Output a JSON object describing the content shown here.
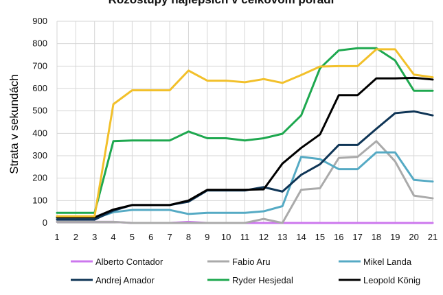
{
  "chart_data": {
    "type": "line",
    "title": "Rozostupy najlepších v celkovom poradí",
    "xlabel": "",
    "ylabel": "Strata v sekundách",
    "x": [
      1,
      2,
      3,
      4,
      5,
      6,
      7,
      8,
      9,
      10,
      11,
      12,
      13,
      14,
      15,
      16,
      17,
      18,
      19,
      20,
      21
    ],
    "ylim": [
      0,
      900
    ],
    "yticks": [
      0,
      100,
      200,
      300,
      400,
      500,
      600,
      700,
      800,
      900
    ],
    "grid": true,
    "legend_position": "bottom",
    "series": [
      {
        "name": "Alberto Contador",
        "color": "#cc77ee",
        "values": [
          5,
          5,
          5,
          5,
          0,
          0,
          0,
          5,
          0,
          0,
          0,
          0,
          0,
          0,
          0,
          0,
          0,
          0,
          0,
          0,
          0
        ]
      },
      {
        "name": "Fabio Aru",
        "color": "#aaaaaa",
        "values": [
          5,
          5,
          5,
          5,
          0,
          0,
          0,
          0,
          0,
          0,
          0,
          18,
          0,
          148,
          155,
          290,
          295,
          365,
          275,
          122,
          110
        ]
      },
      {
        "name": "Mikel Landa",
        "color": "#55aac4",
        "values": [
          20,
          20,
          20,
          48,
          58,
          58,
          58,
          40,
          45,
          45,
          45,
          52,
          75,
          295,
          285,
          240,
          240,
          315,
          315,
          192,
          185
        ]
      },
      {
        "name": "Andrej Amador",
        "color": "#0f3556",
        "values": [
          15,
          15,
          15,
          55,
          80,
          80,
          80,
          95,
          145,
          145,
          145,
          160,
          140,
          215,
          262,
          348,
          348,
          420,
          490,
          498,
          480
        ]
      },
      {
        "name": "Ryder Hesjedal",
        "color": "#1ea84f",
        "values": [
          45,
          45,
          45,
          365,
          368,
          368,
          368,
          408,
          378,
          378,
          368,
          378,
          398,
          480,
          690,
          770,
          780,
          780,
          725,
          590,
          590
        ]
      },
      {
        "name": "Leopold König",
        "color": "#000000",
        "values": [
          25,
          25,
          25,
          60,
          80,
          80,
          80,
          100,
          148,
          148,
          148,
          150,
          265,
          335,
          395,
          570,
          570,
          645,
          645,
          648,
          640
        ]
      },
      {
        "name": "Steven Kruijswijk",
        "color": "#f2c02a",
        "values": [
          30,
          30,
          30,
          530,
          592,
          592,
          592,
          680,
          635,
          635,
          628,
          642,
          625,
          660,
          698,
          700,
          700,
          775,
          775,
          662,
          650
        ]
      }
    ]
  },
  "colors": {
    "grid": "#d6d6d6",
    "axis": "#999999",
    "background": "#ffffff"
  }
}
